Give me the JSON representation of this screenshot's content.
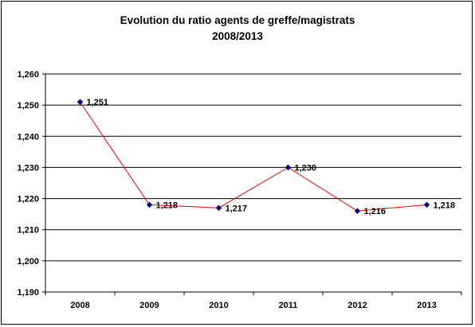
{
  "chart_data": {
    "type": "line",
    "title": "Evolution du ratio agents de greffe/magistrats",
    "subtitle": "2008/2013",
    "categories": [
      "2008",
      "2009",
      "2010",
      "2011",
      "2012",
      "2013"
    ],
    "series": [
      {
        "values": [
          1.251,
          1.218,
          1.217,
          1.23,
          1.216,
          1.218
        ]
      }
    ],
    "data_labels": [
      "1,251",
      "1,218",
      "1,217",
      "1,230",
      "1,216",
      "1,218"
    ],
    "ylim": [
      1.19,
      1.26
    ],
    "yticks": [
      1.26,
      1.25,
      1.24,
      1.23,
      1.22,
      1.21,
      1.2,
      1.19
    ],
    "ytick_labels": [
      "1,260",
      "1,250",
      "1,240",
      "1,230",
      "1,220",
      "1,210",
      "1,200",
      "1,190"
    ],
    "grid": true,
    "legend": "none",
    "line_color": "#ff0000",
    "marker_color": "#000080"
  }
}
